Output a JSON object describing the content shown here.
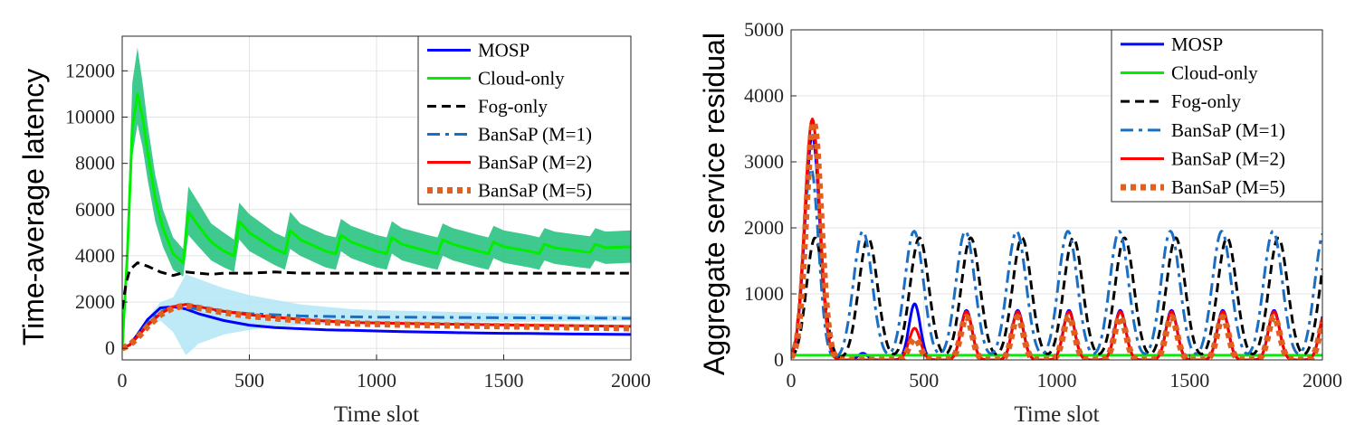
{
  "chart_data": [
    {
      "type": "line",
      "xlabel": "Time slot",
      "ylabel": "Time-average latency",
      "xlim": [
        0,
        2000
      ],
      "ylim": [
        -500,
        13500
      ],
      "x_ticks": [
        0,
        500,
        1000,
        1500,
        2000
      ],
      "y_ticks": [
        0,
        2000,
        4000,
        6000,
        8000,
        10000,
        12000
      ],
      "grid": true,
      "legend_position": "top-right",
      "series": [
        {
          "name": "MOSP",
          "color": "#0000ff",
          "style": "solid",
          "x": [
            0,
            30,
            60,
            100,
            150,
            200,
            250,
            300,
            400,
            500,
            600,
            700,
            800,
            900,
            1000,
            1100,
            1200,
            1300,
            1400,
            1500,
            1600,
            1700,
            1800,
            1900,
            2000
          ],
          "y": [
            0,
            150,
            600,
            1250,
            1750,
            1800,
            1700,
            1500,
            1200,
            1000,
            900,
            850,
            800,
            780,
            750,
            720,
            700,
            680,
            660,
            650,
            640,
            630,
            620,
            610,
            600
          ]
        },
        {
          "name": "Cloud-only",
          "color": "#00ee00",
          "style": "solid",
          "x": [
            0,
            20,
            40,
            60,
            80,
            100,
            130,
            160,
            200,
            240,
            260,
            300,
            350,
            400,
            440,
            460,
            500,
            600,
            640,
            660,
            700,
            800,
            840,
            860,
            900,
            1000,
            1040,
            1060,
            1100,
            1200,
            1240,
            1260,
            1300,
            1400,
            1440,
            1460,
            1500,
            1600,
            1640,
            1660,
            1700,
            1800,
            1840,
            1860,
            1900,
            2000
          ],
          "y": [
            0,
            4000,
            9500,
            11000,
            10000,
            8500,
            6500,
            5200,
            4100,
            3700,
            5900,
            5300,
            4600,
            4200,
            4000,
            5500,
            5000,
            4300,
            4100,
            5100,
            4700,
            4200,
            4100,
            4900,
            4600,
            4200,
            4100,
            4800,
            4500,
            4200,
            4100,
            4700,
            4500,
            4200,
            4100,
            4600,
            4400,
            4200,
            4100,
            4500,
            4350,
            4200,
            4150,
            4500,
            4350,
            4400
          ],
          "band": {
            "upper": [
              300,
              5000,
              11500,
              13000,
              11500,
              9700,
              7500,
              6000,
              4800,
              4300,
              7000,
              6300,
              5400,
              5000,
              4700,
              6300,
              5800,
              5000,
              4800,
              5900,
              5400,
              4900,
              4800,
              5600,
              5300,
              4900,
              4800,
              5500,
              5200,
              4900,
              4800,
              5400,
              5200,
              4900,
              4800,
              5300,
              5100,
              4900,
              4800,
              5200,
              5050,
              4900,
              4850,
              5200,
              5050,
              5100
            ],
            "lower": [
              0,
              3200,
              8300,
              9700,
              8700,
              7300,
              5500,
              4400,
              3400,
              3100,
              4900,
              4400,
              3800,
              3500,
              3300,
              4700,
              4200,
              3600,
              3400,
              4300,
              4000,
              3500,
              3400,
              4200,
              3900,
              3500,
              3400,
              4100,
              3800,
              3500,
              3400,
              4000,
              3800,
              3500,
              3400,
              3900,
              3700,
              3500,
              3400,
              3800,
              3650,
              3500,
              3450,
              3800,
              3650,
              3700
            ],
            "color": "#1fbf7a"
          }
        },
        {
          "name": "Fog-only",
          "color": "#000000",
          "style": "dashed",
          "x": [
            0,
            15,
            30,
            60,
            100,
            150,
            200,
            250,
            300,
            350,
            400,
            500,
            600,
            700,
            800,
            900,
            1000,
            1200,
            1400,
            1600,
            1800,
            2000
          ],
          "y": [
            1700,
            2800,
            3400,
            3700,
            3550,
            3300,
            3150,
            3300,
            3250,
            3200,
            3250,
            3250,
            3300,
            3250,
            3250,
            3250,
            3250,
            3250,
            3250,
            3250,
            3250,
            3250
          ]
        },
        {
          "name": "BanSaP (M=1)",
          "color": "#1a6fc4",
          "style": "dashdot",
          "x": [
            0,
            30,
            60,
            100,
            150,
            200,
            250,
            300,
            400,
            500,
            600,
            700,
            800,
            900,
            1000,
            1200,
            1400,
            1600,
            1800,
            2000
          ],
          "y": [
            0,
            150,
            500,
            1100,
            1600,
            1700,
            1750,
            1700,
            1600,
            1500,
            1450,
            1400,
            1380,
            1360,
            1350,
            1340,
            1330,
            1320,
            1310,
            1300
          ],
          "band": {
            "upper": [
              0,
              200,
              600,
              1300,
              2000,
              2200,
              3200,
              3000,
              2600,
              2300,
              2100,
              1900,
              1800,
              1700,
              1650,
              1600,
              1550,
              1500,
              1450,
              1400
            ],
            "lower": [
              0,
              100,
              400,
              900,
              1200,
              700,
              -300,
              200,
              600,
              800,
              900,
              1000,
              1050,
              1100,
              1100,
              1120,
              1130,
              1150,
              1170,
              1200
            ],
            "color": "#b3e6f7"
          }
        },
        {
          "name": "BanSaP (M=2)",
          "color": "#ff0000",
          "style": "solid",
          "x": [
            0,
            30,
            60,
            100,
            150,
            200,
            250,
            300,
            400,
            500,
            600,
            700,
            800,
            900,
            1000,
            1200,
            1400,
            1600,
            1800,
            2000
          ],
          "y": [
            0,
            150,
            500,
            1000,
            1500,
            1800,
            1900,
            1800,
            1600,
            1450,
            1350,
            1250,
            1180,
            1120,
            1100,
            1060,
            1030,
            1000,
            980,
            950
          ]
        },
        {
          "name": "BanSaP (M=5)",
          "color": "#e06020",
          "style": "dotted-thick",
          "x": [
            0,
            30,
            60,
            100,
            150,
            200,
            250,
            300,
            400,
            500,
            600,
            700,
            800,
            900,
            1000,
            1200,
            1400,
            1600,
            1800,
            2000
          ],
          "y": [
            0,
            150,
            450,
            950,
            1450,
            1750,
            1850,
            1750,
            1550,
            1400,
            1300,
            1200,
            1130,
            1080,
            1050,
            1000,
            970,
            940,
            900,
            870
          ]
        }
      ]
    },
    {
      "type": "line",
      "xlabel": "Time slot",
      "ylabel": "Aggregate service residual",
      "xlim": [
        0,
        2000
      ],
      "ylim": [
        0,
        5000
      ],
      "x_ticks": [
        0,
        500,
        1000,
        1500,
        2000
      ],
      "y_ticks": [
        0,
        1000,
        2000,
        3000,
        4000,
        5000
      ],
      "grid": true,
      "legend_position": "top-right",
      "series": [
        {
          "name": "MOSP",
          "color": "#0000ff",
          "style": "solid",
          "peaks": [
            {
              "x": 80,
              "y": 3400,
              "w": 40
            },
            {
              "x": 270,
              "y": 100,
              "w": 25
            },
            {
              "x": 465,
              "y": 850,
              "w": 30
            }
          ],
          "tail_peaks": {
            "start": 660,
            "period": 193,
            "y": 750,
            "w": 30
          }
        },
        {
          "name": "Cloud-only",
          "color": "#00ee00",
          "style": "solid",
          "baseline": 70
        },
        {
          "name": "Fog-only",
          "color": "#000000",
          "style": "dashed",
          "peaks": [
            {
              "x": 90,
              "y": 1850,
              "w": 45
            }
          ],
          "tail_peaks": {
            "start": 290,
            "period": 193,
            "y": 1850,
            "w": 50
          }
        },
        {
          "name": "BanSaP (M=1)",
          "color": "#1a6fc4",
          "style": "dashdot",
          "peaks": [
            {
              "x": 75,
              "y": 2900,
              "w": 40
            }
          ],
          "tail_peaks": {
            "start": 270,
            "period": 193,
            "y": 1950,
            "w": 50
          }
        },
        {
          "name": "BanSaP (M=2)",
          "color": "#ff0000",
          "style": "solid",
          "peaks": [
            {
              "x": 80,
              "y": 3650,
              "w": 40
            },
            {
              "x": 465,
              "y": 480,
              "w": 30
            }
          ],
          "tail_peaks": {
            "start": 660,
            "period": 193,
            "y": 730,
            "w": 30
          }
        },
        {
          "name": "BanSaP (M=5)",
          "color": "#e06020",
          "style": "dotted-thick",
          "peaks": [
            {
              "x": 85,
              "y": 3600,
              "w": 40
            },
            {
              "x": 465,
              "y": 320,
              "w": 30
            }
          ],
          "tail_peaks": {
            "start": 660,
            "period": 193,
            "y": 650,
            "w": 30
          }
        }
      ]
    }
  ]
}
